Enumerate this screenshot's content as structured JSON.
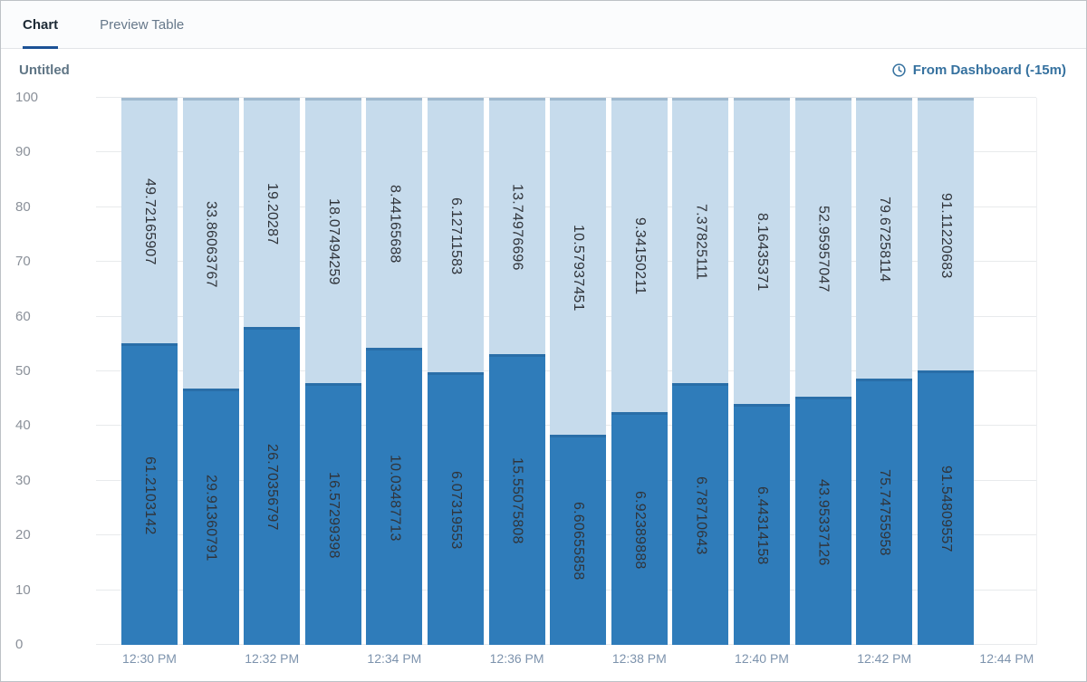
{
  "tabs": [
    {
      "label": "Chart",
      "active": true
    },
    {
      "label": "Preview Table",
      "active": false
    }
  ],
  "header": {
    "title": "Untitled",
    "dashboard_link": "From Dashboard (-15m)"
  },
  "chart_data": {
    "type": "bar",
    "subtype": "100-percent-stacked-vertical",
    "title": "Untitled",
    "xlabel": "",
    "ylabel": "",
    "ylim": [
      0,
      100
    ],
    "grid": true,
    "legend": "none",
    "y_ticks": [
      0,
      10,
      20,
      30,
      40,
      50,
      60,
      70,
      80,
      90,
      100
    ],
    "x_tick_labels": [
      "12:30 PM",
      "12:32 PM",
      "12:34 PM",
      "12:36 PM",
      "12:38 PM",
      "12:40 PM",
      "12:42 PM",
      "12:44 PM"
    ],
    "colors": {
      "bottom_series": "#2f7cba",
      "top_series": "#c6dbec"
    },
    "bars": [
      {
        "bottom": "61.2103142",
        "top": "49.72165907"
      },
      {
        "bottom": "29.91360791",
        "top": "33.86063767"
      },
      {
        "bottom": "26.70356797",
        "top": "19.20287"
      },
      {
        "bottom": "16.57299398",
        "top": "18.07494259"
      },
      {
        "bottom": "10.03487713",
        "top": "8.44165688"
      },
      {
        "bottom": "6.07319553",
        "top": "6.12711583"
      },
      {
        "bottom": "15.55075808",
        "top": "13.74976696"
      },
      {
        "bottom": "6.60655858",
        "top": "10.57937451"
      },
      {
        "bottom": "6.92389888",
        "top": "9.34150211"
      },
      {
        "bottom": "6.78710643",
        "top": "7.37825111"
      },
      {
        "bottom": "6.44314158",
        "top": "8.16435371"
      },
      {
        "bottom": "43.95337126",
        "top": "52.95957047"
      },
      {
        "bottom": "75.74755958",
        "top": "79.67258114"
      },
      {
        "bottom": "91.54809557",
        "top": "91.11220683"
      }
    ]
  }
}
